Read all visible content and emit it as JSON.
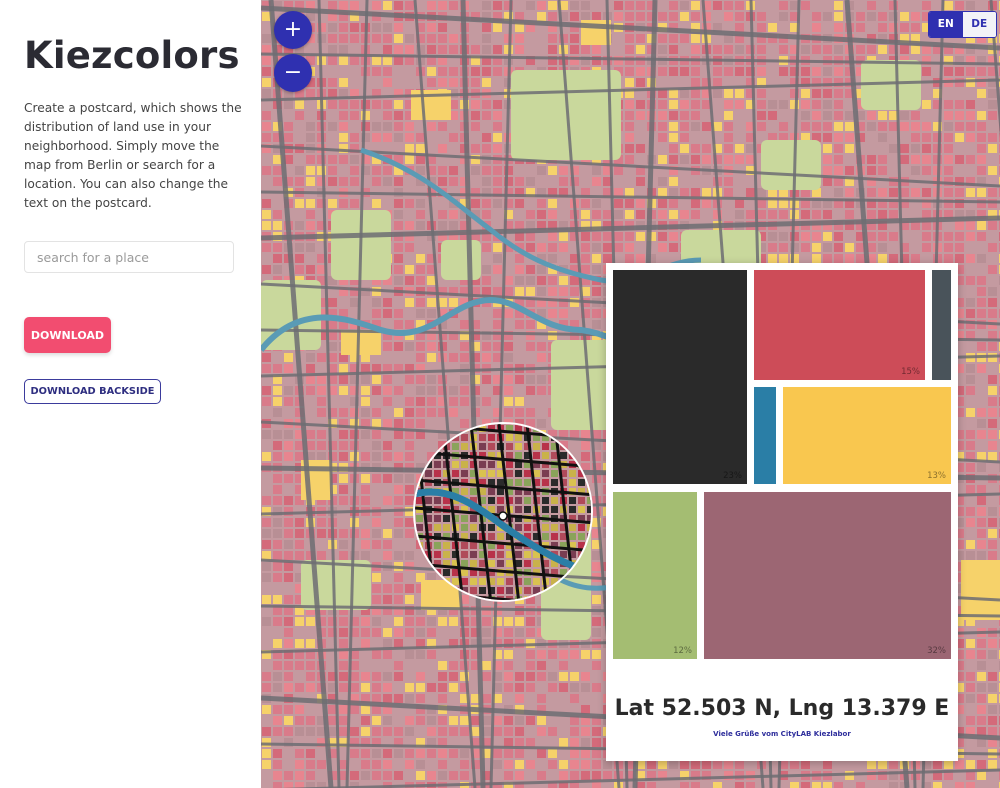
{
  "app": {
    "title": "Kiezcolors",
    "description": "Create a postcard, which shows the distribution of land use in your neighborhood. Simply move the map from Berlin or search for a location. You can also change the text on the postcard."
  },
  "search": {
    "placeholder": "search for a place",
    "value": ""
  },
  "buttons": {
    "download": "DOWNLOAD",
    "download_backside": "DOWNLOAD BACKSIDE"
  },
  "map": {
    "zoom_in": "+",
    "zoom_out": "−",
    "languages": [
      "EN",
      "DE"
    ],
    "active_language": "EN"
  },
  "postcard": {
    "tiles": [
      {
        "color": "#2a2a2a",
        "percent": "23%"
      },
      {
        "color": "#cd4c58",
        "percent": "15%"
      },
      {
        "color": "#49535a",
        "percent": ""
      },
      {
        "color": "#2a7ea6",
        "percent": ""
      },
      {
        "color": "#f9c74f",
        "percent": "13%"
      },
      {
        "color": "#a4bd72",
        "percent": "12%"
      },
      {
        "color": "#9c6673",
        "percent": "32%"
      }
    ],
    "coordinates": "Lat 52.503 N, Lng 13.379 E",
    "greeting": "Viele Grüße vom CityLAB Kiezlabor"
  },
  "colors": {
    "accent": "#2f30b0",
    "download_button": "#f24d70",
    "map_residential": "#d97b8a",
    "map_mixed": "#c49aa0",
    "map_green": "#c9d89c",
    "map_commercial": "#f6d26a",
    "map_water": "#5a9bb5",
    "map_roads": "#6e6e73"
  }
}
